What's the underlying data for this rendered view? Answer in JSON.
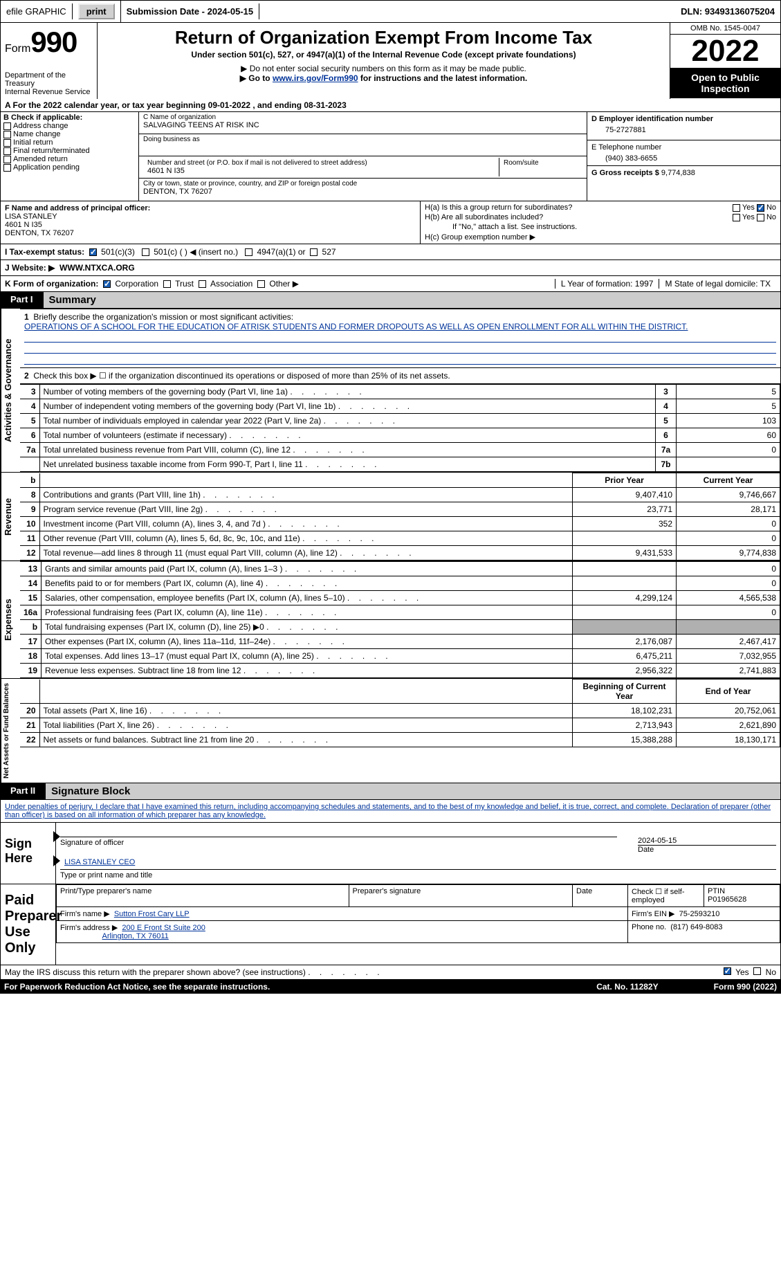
{
  "topbar": {
    "efile_label": "efile GRAPHIC",
    "print_btn": "print",
    "submission_label": "Submission Date - 2024-05-15",
    "dln": "DLN: 93493136075204"
  },
  "header": {
    "form_label": "Form",
    "form_num": "990",
    "dept": "Department of the Treasury\nInternal Revenue Service",
    "title": "Return of Organization Exempt From Income Tax",
    "subtitle": "Under section 501(c), 527, or 4947(a)(1) of the Internal Revenue Code (except private foundations)",
    "note1": "▶ Do not enter social security numbers on this form as it may be made public.",
    "note2_pre": "▶ Go to ",
    "note2_link": "www.irs.gov/Form990",
    "note2_post": " for instructions and the latest information.",
    "omb": "OMB No. 1545-0047",
    "year": "2022",
    "open": "Open to Public Inspection"
  },
  "rowA": "A For the 2022 calendar year, or tax year beginning 09-01-2022   , and ending 08-31-2023",
  "B": {
    "label": "B Check if applicable:",
    "opts": [
      "Address change",
      "Name change",
      "Initial return",
      "Final return/terminated",
      "Amended return",
      "Application pending"
    ]
  },
  "C": {
    "name_lbl": "C Name of organization",
    "name": "SALVAGING TEENS AT RISK INC",
    "dba_lbl": "Doing business as",
    "dba": "",
    "addr_lbl": "Number and street (or P.O. box if mail is not delivered to street address)",
    "addr": "4601 N I35",
    "room_lbl": "Room/suite",
    "city_lbl": "City or town, state or province, country, and ZIP or foreign postal code",
    "city": "DENTON, TX  76207"
  },
  "D": {
    "lbl": "D Employer identification number",
    "val": "75-2727881"
  },
  "E": {
    "lbl": "E Telephone number",
    "val": "(940) 383-6655"
  },
  "G": {
    "lbl": "G Gross receipts $",
    "val": "9,774,838"
  },
  "F": {
    "lbl": "F Name and address of principal officer:",
    "name": "LISA STANLEY",
    "addr1": "4601 N I35",
    "addr2": "DENTON, TX  76207"
  },
  "H": {
    "a": "H(a)  Is this a group return for subordinates?",
    "b": "H(b)  Are all subordinates included?",
    "b_note": "If \"No,\" attach a list. See instructions.",
    "c": "H(c)  Group exemption number ▶",
    "yes": "Yes",
    "no": "No"
  },
  "I": {
    "lbl": "I    Tax-exempt status:",
    "opt1": "501(c)(3)",
    "opt2": "501(c) (  ) ◀ (insert no.)",
    "opt3": "4947(a)(1) or",
    "opt4": "527"
  },
  "J": {
    "lbl": "J    Website: ▶",
    "val": "WWW.NTXCA.ORG"
  },
  "K": {
    "lbl": "K Form of organization:",
    "opts": [
      "Corporation",
      "Trust",
      "Association",
      "Other ▶"
    ],
    "L": "L Year of formation: 1997",
    "M": "M State of legal domicile: TX"
  },
  "parts": {
    "p1": "Part I",
    "p1t": "Summary",
    "p2": "Part II",
    "p2t": "Signature Block"
  },
  "vlabels": {
    "ag": "Activities & Governance",
    "rev": "Revenue",
    "exp": "Expenses",
    "na": "Net Assets or Fund Balances"
  },
  "summary": {
    "l1_lbl": "Briefly describe the organization's mission or most significant activities:",
    "l1_val": "OPERATIONS OF A SCHOOL FOR THE EDUCATION OF ATRISK STUDENTS AND FORMER DROPOUTS AS WELL AS OPEN ENROLLMENT FOR ALL WITHIN THE DISTRICT.",
    "l2": "Check this box ▶ ☐ if the organization discontinued its operations or disposed of more than 25% of its net assets.",
    "rows_ag": [
      {
        "n": "3",
        "d": "Number of voting members of the governing body (Part VI, line 1a)",
        "b": "3",
        "v": "5"
      },
      {
        "n": "4",
        "d": "Number of independent voting members of the governing body (Part VI, line 1b)",
        "b": "4",
        "v": "5"
      },
      {
        "n": "5",
        "d": "Total number of individuals employed in calendar year 2022 (Part V, line 2a)",
        "b": "5",
        "v": "103"
      },
      {
        "n": "6",
        "d": "Total number of volunteers (estimate if necessary)",
        "b": "6",
        "v": "60"
      },
      {
        "n": "7a",
        "d": "Total unrelated business revenue from Part VIII, column (C), line 12",
        "b": "7a",
        "v": "0"
      },
      {
        "n": "",
        "d": "Net unrelated business taxable income from Form 990-T, Part I, line 11",
        "b": "7b",
        "v": ""
      }
    ],
    "col_hdr_prior": "Prior Year",
    "col_hdr_current": "Current Year",
    "rev_rows": [
      {
        "n": "8",
        "d": "Contributions and grants (Part VIII, line 1h)",
        "py": "9,407,410",
        "cy": "9,746,667"
      },
      {
        "n": "9",
        "d": "Program service revenue (Part VIII, line 2g)",
        "py": "23,771",
        "cy": "28,171"
      },
      {
        "n": "10",
        "d": "Investment income (Part VIII, column (A), lines 3, 4, and 7d )",
        "py": "352",
        "cy": "0"
      },
      {
        "n": "11",
        "d": "Other revenue (Part VIII, column (A), lines 5, 6d, 8c, 9c, 10c, and 11e)",
        "py": "",
        "cy": "0"
      },
      {
        "n": "12",
        "d": "Total revenue—add lines 8 through 11 (must equal Part VIII, column (A), line 12)",
        "py": "9,431,533",
        "cy": "9,774,838"
      }
    ],
    "exp_rows": [
      {
        "n": "13",
        "d": "Grants and similar amounts paid (Part IX, column (A), lines 1–3 )",
        "py": "",
        "cy": "0"
      },
      {
        "n": "14",
        "d": "Benefits paid to or for members (Part IX, column (A), line 4)",
        "py": "",
        "cy": "0"
      },
      {
        "n": "15",
        "d": "Salaries, other compensation, employee benefits (Part IX, column (A), lines 5–10)",
        "py": "4,299,124",
        "cy": "4,565,538"
      },
      {
        "n": "16a",
        "d": "Professional fundraising fees (Part IX, column (A), line 11e)",
        "py": "",
        "cy": "0"
      },
      {
        "n": "b",
        "d": "Total fundraising expenses (Part IX, column (D), line 25) ▶0",
        "py": "GREY",
        "cy": "GREY"
      },
      {
        "n": "17",
        "d": "Other expenses (Part IX, column (A), lines 11a–11d, 11f–24e)",
        "py": "2,176,087",
        "cy": "2,467,417"
      },
      {
        "n": "18",
        "d": "Total expenses. Add lines 13–17 (must equal Part IX, column (A), line 25)",
        "py": "6,475,211",
        "cy": "7,032,955"
      },
      {
        "n": "19",
        "d": "Revenue less expenses. Subtract line 18 from line 12",
        "py": "2,956,322",
        "cy": "2,741,883"
      }
    ],
    "na_hdr_begin": "Beginning of Current Year",
    "na_hdr_end": "End of Year",
    "na_rows": [
      {
        "n": "20",
        "d": "Total assets (Part X, line 16)",
        "py": "18,102,231",
        "cy": "20,752,061"
      },
      {
        "n": "21",
        "d": "Total liabilities (Part X, line 26)",
        "py": "2,713,943",
        "cy": "2,621,890"
      },
      {
        "n": "22",
        "d": "Net assets or fund balances. Subtract line 21 from line 20",
        "py": "15,388,288",
        "cy": "18,130,171"
      }
    ]
  },
  "sig": {
    "penalty": "Under penalties of perjury, I declare that I have examined this return, including accompanying schedules and statements, and to the best of my knowledge and belief, it is true, correct, and complete. Declaration of preparer (other than officer) is based on all information of which preparer has any knowledge.",
    "sign_here": "Sign Here",
    "sig_officer": "Signature of officer",
    "date": "2024-05-15",
    "date_lbl": "Date",
    "name_title": "LISA STANLEY CEO",
    "name_title_lbl": "Type or print name and title"
  },
  "prep": {
    "title": "Paid Preparer Use Only",
    "col1": "Print/Type preparer's name",
    "col2": "Preparer's signature",
    "col3": "Date",
    "col4_lbl": "Check ☐ if self-employed",
    "ptin_lbl": "PTIN",
    "ptin": "P01965628",
    "firm_name_lbl": "Firm's name    ▶",
    "firm_name": "Sutton Frost Cary LLP",
    "firm_ein_lbl": "Firm's EIN ▶",
    "firm_ein": "75-2593210",
    "firm_addr_lbl": "Firm's address ▶",
    "firm_addr1": "200 E Front St Suite 200",
    "firm_addr2": "Arlington, TX  76011",
    "phone_lbl": "Phone no.",
    "phone": "(817) 649-8083"
  },
  "footer": {
    "discuss": "May the IRS discuss this return with the preparer shown above? (see instructions)",
    "yes": "Yes",
    "no": "No",
    "paperwork": "For Paperwork Reduction Act Notice, see the separate instructions.",
    "cat": "Cat. No. 11282Y",
    "form": "Form 990 (2022)"
  }
}
